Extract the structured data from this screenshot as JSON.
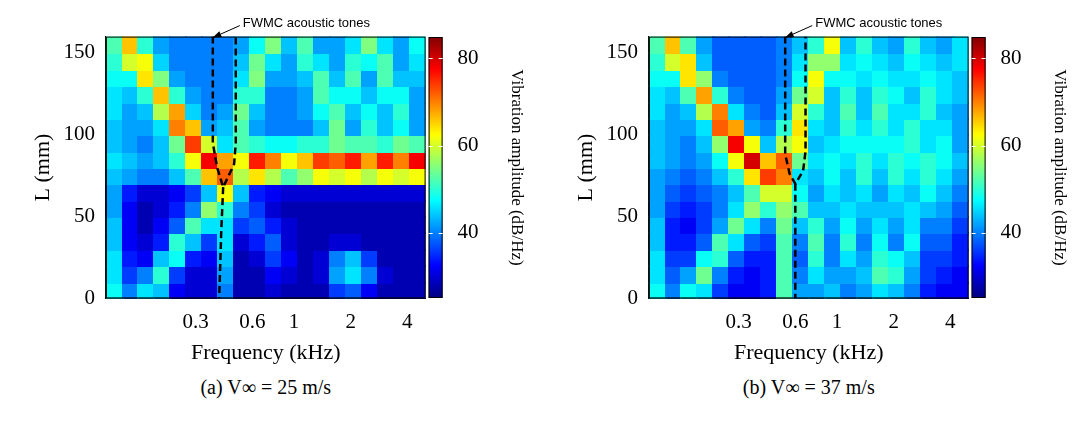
{
  "chart_data": [
    {
      "type": "heatmap",
      "title": "(a) V∞ = 25 m/s",
      "x_label": "Frequency (kHz)",
      "y_label": "L (mm)",
      "log": "x",
      "grid": false,
      "xlim": [
        0.1,
        5
      ],
      "xticks": [
        0.3,
        0.6,
        1,
        2,
        4
      ],
      "ylim": [
        0,
        160
      ],
      "yticks": [
        0,
        50,
        100,
        150
      ],
      "x_edges": [
        0.1,
        0.122,
        0.148,
        0.18,
        0.219,
        0.266,
        0.324,
        0.394,
        0.479,
        0.582,
        0.707,
        0.86,
        1.046,
        1.271,
        1.546,
        1.879,
        2.285,
        2.778,
        3.377,
        4.106,
        5
      ],
      "y_edges": [
        0,
        10,
        20,
        30,
        40,
        50,
        60,
        70,
        80,
        90,
        100,
        110,
        120,
        130,
        140,
        150,
        160
      ],
      "cells": [
        [
          48,
          40,
          46,
          44,
          32,
          30,
          30,
          40,
          28,
          28,
          30,
          28,
          28,
          28,
          36,
          38,
          32,
          28,
          28,
          28
        ],
        [
          46,
          36,
          40,
          50,
          36,
          30,
          30,
          42,
          28,
          28,
          32,
          30,
          28,
          30,
          42,
          46,
          40,
          30,
          28,
          28
        ],
        [
          46,
          34,
          32,
          44,
          48,
          34,
          32,
          44,
          28,
          30,
          36,
          32,
          28,
          30,
          40,
          44,
          36,
          28,
          28,
          28
        ],
        [
          44,
          32,
          30,
          34,
          50,
          44,
          36,
          46,
          30,
          34,
          38,
          30,
          28,
          28,
          30,
          30,
          28,
          28,
          28,
          28
        ],
        [
          44,
          32,
          28,
          32,
          38,
          52,
          46,
          46,
          36,
          38,
          34,
          30,
          28,
          28,
          28,
          28,
          28,
          28,
          28,
          28
        ],
        [
          42,
          32,
          28,
          30,
          34,
          40,
          56,
          50,
          40,
          36,
          30,
          28,
          28,
          28,
          28,
          28,
          28,
          28,
          28,
          28
        ],
        [
          42,
          34,
          30,
          30,
          32,
          36,
          44,
          62,
          44,
          34,
          32,
          30,
          30,
          30,
          30,
          30,
          30,
          30,
          30,
          30
        ],
        [
          44,
          42,
          40,
          40,
          44,
          52,
          66,
          72,
          58,
          64,
          58,
          52,
          56,
          62,
          60,
          62,
          58,
          62,
          60,
          62
        ],
        [
          46,
          44,
          42,
          44,
          50,
          62,
          78,
          68,
          62,
          76,
          70,
          62,
          66,
          74,
          72,
          76,
          68,
          76,
          70,
          78
        ],
        [
          44,
          42,
          40,
          44,
          54,
          74,
          60,
          46,
          52,
          50,
          48,
          48,
          50,
          50,
          54,
          52,
          52,
          50,
          54,
          52
        ],
        [
          44,
          42,
          42,
          46,
          70,
          66,
          42,
          44,
          52,
          42,
          40,
          40,
          40,
          44,
          54,
          42,
          50,
          44,
          48,
          42
        ],
        [
          46,
          42,
          44,
          58,
          68,
          45,
          40,
          42,
          54,
          44,
          40,
          40,
          42,
          48,
          52,
          44,
          48,
          44,
          50,
          42
        ],
        [
          46,
          44,
          50,
          66,
          50,
          42,
          40,
          40,
          50,
          50,
          40,
          40,
          42,
          52,
          48,
          48,
          44,
          48,
          48,
          42
        ],
        [
          48,
          48,
          64,
          55,
          42,
          40,
          40,
          40,
          46,
          55,
          42,
          42,
          44,
          52,
          44,
          52,
          42,
          52,
          44,
          44
        ],
        [
          50,
          60,
          62,
          45,
          40,
          40,
          40,
          40,
          44,
          54,
          46,
          42,
          50,
          46,
          42,
          50,
          48,
          52,
          42,
          46
        ],
        [
          52,
          66,
          50,
          42,
          40,
          40,
          40,
          40,
          42,
          48,
          55,
          44,
          52,
          42,
          42,
          46,
          55,
          46,
          42,
          48
        ]
      ],
      "colorbar": {
        "label": "Vibration amplitude (dB/Hz)",
        "range": [
          25,
          85
        ],
        "ticks": [
          40,
          60,
          80
        ]
      },
      "series": [
        {
          "color": "#000000",
          "line_style": "dashed",
          "x": [
            0.37,
            0.37,
            0.39,
            0.42,
            0.48,
            0.49,
            0.49
          ],
          "y": [
            160,
            95,
            80,
            68,
            82,
            95,
            160
          ]
        },
        {
          "color": "#000000",
          "line_style": "dashed",
          "x": [
            0.42,
            0.41,
            0.4
          ],
          "y": [
            68,
            40,
            0
          ]
        }
      ],
      "annotations": [
        {
          "text": "FWMC acoustic tones",
          "x": 0.37,
          "y": 160
        }
      ]
    },
    {
      "type": "heatmap",
      "title": "(b) V∞ = 37 m/s",
      "x_label": "Frequency (kHz)",
      "y_label": "L (mm)",
      "log": "x",
      "grid": false,
      "xlim": [
        0.1,
        5
      ],
      "xticks": [
        0.3,
        0.6,
        1,
        2,
        4
      ],
      "ylim": [
        0,
        160
      ],
      "yticks": [
        0,
        50,
        100,
        150
      ],
      "x_edges": [
        0.1,
        0.122,
        0.148,
        0.18,
        0.219,
        0.266,
        0.324,
        0.394,
        0.479,
        0.582,
        0.707,
        0.86,
        1.046,
        1.271,
        1.546,
        1.879,
        2.285,
        2.778,
        3.377,
        4.106,
        5
      ],
      "y_edges": [
        0,
        10,
        20,
        30,
        40,
        50,
        60,
        70,
        80,
        90,
        100,
        110,
        120,
        130,
        140,
        150,
        160
      ],
      "cells": [
        [
          48,
          40,
          48,
          46,
          36,
          32,
          32,
          34,
          52,
          42,
          42,
          44,
          40,
          42,
          46,
          44,
          40,
          34,
          32,
          32
        ],
        [
          46,
          38,
          42,
          54,
          40,
          34,
          32,
          34,
          52,
          40,
          46,
          42,
          42,
          44,
          52,
          50,
          42,
          36,
          34,
          32
        ],
        [
          46,
          36,
          36,
          48,
          50,
          38,
          34,
          34,
          52,
          38,
          50,
          40,
          46,
          42,
          50,
          48,
          44,
          36,
          36,
          34
        ],
        [
          44,
          34,
          34,
          38,
          52,
          46,
          38,
          36,
          52,
          40,
          52,
          40,
          50,
          40,
          48,
          40,
          48,
          38,
          38,
          34
        ],
        [
          44,
          34,
          32,
          36,
          42,
          54,
          46,
          40,
          54,
          44,
          50,
          42,
          48,
          42,
          46,
          42,
          46,
          40,
          40,
          36
        ],
        [
          42,
          36,
          34,
          36,
          40,
          46,
          56,
          50,
          56,
          52,
          44,
          44,
          46,
          44,
          44,
          44,
          46,
          44,
          42,
          38
        ],
        [
          42,
          38,
          36,
          38,
          40,
          44,
          52,
          60,
          60,
          48,
          42,
          46,
          44,
          46,
          42,
          46,
          44,
          48,
          44,
          40
        ],
        [
          42,
          40,
          38,
          40,
          44,
          50,
          64,
          74,
          70,
          46,
          44,
          48,
          44,
          50,
          44,
          50,
          46,
          50,
          46,
          42
        ],
        [
          44,
          42,
          40,
          42,
          48,
          62,
          80,
          66,
          72,
          54,
          46,
          48,
          46,
          50,
          46,
          50,
          48,
          50,
          48,
          44
        ],
        [
          44,
          42,
          40,
          44,
          56,
          78,
          62,
          44,
          58,
          62,
          44,
          46,
          48,
          48,
          48,
          48,
          50,
          46,
          48,
          42
        ],
        [
          44,
          42,
          42,
          46,
          72,
          68,
          42,
          40,
          50,
          64,
          46,
          44,
          50,
          46,
          50,
          46,
          50,
          46,
          46,
          42
        ],
        [
          46,
          42,
          44,
          58,
          70,
          46,
          40,
          38,
          44,
          60,
          50,
          44,
          52,
          44,
          52,
          46,
          46,
          50,
          44,
          42
        ],
        [
          46,
          44,
          52,
          68,
          50,
          40,
          38,
          38,
          42,
          54,
          60,
          44,
          50,
          44,
          50,
          48,
          44,
          50,
          46,
          44
        ],
        [
          48,
          48,
          64,
          56,
          40,
          38,
          38,
          38,
          40,
          48,
          62,
          48,
          48,
          46,
          48,
          46,
          46,
          48,
          46,
          44
        ],
        [
          50,
          60,
          64,
          44,
          38,
          38,
          38,
          38,
          40,
          46,
          56,
          56,
          46,
          48,
          46,
          44,
          48,
          46,
          44,
          46
        ],
        [
          52,
          66,
          52,
          42,
          38,
          38,
          38,
          38,
          40,
          44,
          50,
          62,
          44,
          50,
          44,
          42,
          50,
          44,
          42,
          46
        ]
      ],
      "colorbar": {
        "label": "Vibration amplitude (dB/Hz)",
        "range": [
          25,
          85
        ],
        "ticks": [
          40,
          60,
          80
        ]
      },
      "series": [
        {
          "color": "#000000",
          "line_style": "dashed",
          "x": [
            0.53,
            0.53,
            0.56,
            0.6,
            0.66,
            0.68,
            0.68
          ],
          "y": [
            160,
            88,
            76,
            70,
            78,
            90,
            160
          ]
        },
        {
          "color": "#000000",
          "line_style": "dashed",
          "x": [
            0.6,
            0.6
          ],
          "y": [
            70,
            0
          ]
        }
      ],
      "annotations": [
        {
          "text": "FWMC acoustic tones",
          "x": 0.53,
          "y": 160
        }
      ]
    }
  ]
}
